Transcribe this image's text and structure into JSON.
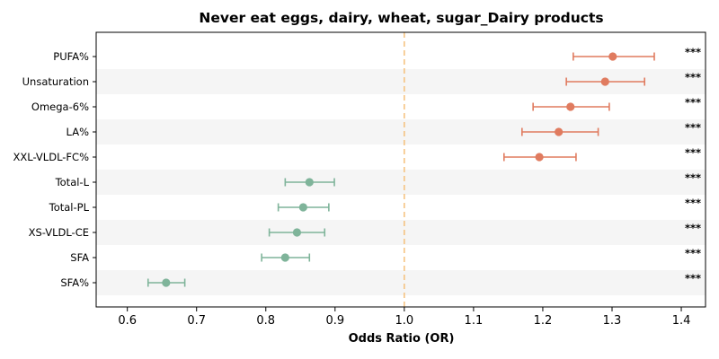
{
  "chart_data": {
    "type": "forest",
    "title": "Never eat eggs, dairy, wheat, sugar_Dairy products",
    "xlabel": "Odds Ratio (OR)",
    "xlim": [
      0.555,
      1.435
    ],
    "xticks": [
      "0.6",
      "0.7",
      "0.8",
      "0.9",
      "1.0",
      "1.1",
      "1.2",
      "1.3",
      "1.4"
    ],
    "reference_line": 1.0,
    "colors": {
      "positive": "#E07B5F",
      "negative": "#7FB49A",
      "reference": "#F5C07A",
      "stripe": "#F5F5F5"
    },
    "rows": [
      {
        "label": "PUFA%",
        "or": 1.301,
        "lo": 1.244,
        "hi": 1.361,
        "sig": "***"
      },
      {
        "label": "Unsaturation",
        "or": 1.29,
        "lo": 1.234,
        "hi": 1.347,
        "sig": "***"
      },
      {
        "label": "Omega-6%",
        "or": 1.24,
        "lo": 1.186,
        "hi": 1.296,
        "sig": "***"
      },
      {
        "label": "LA%",
        "or": 1.223,
        "lo": 1.17,
        "hi": 1.28,
        "sig": "***"
      },
      {
        "label": "XXL-VLDL-FC%",
        "or": 1.195,
        "lo": 1.144,
        "hi": 1.248,
        "sig": "***"
      },
      {
        "label": "Total-L",
        "or": 0.863,
        "lo": 0.828,
        "hi": 0.899,
        "sig": "***"
      },
      {
        "label": "Total-PL",
        "or": 0.854,
        "lo": 0.818,
        "hi": 0.891,
        "sig": "***"
      },
      {
        "label": "XS-VLDL-CE",
        "or": 0.845,
        "lo": 0.805,
        "hi": 0.885,
        "sig": "***"
      },
      {
        "label": "SFA",
        "or": 0.828,
        "lo": 0.794,
        "hi": 0.863,
        "sig": "***"
      },
      {
        "label": "SFA%",
        "or": 0.656,
        "lo": 0.63,
        "hi": 0.683,
        "sig": "***"
      }
    ]
  }
}
